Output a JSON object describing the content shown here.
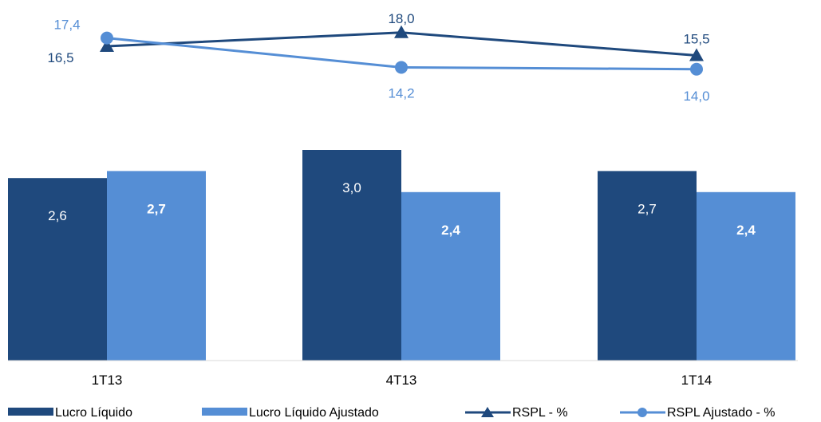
{
  "chart_data": {
    "type": "bar",
    "categories": [
      "1T13",
      "4T13",
      "1T14"
    ],
    "bar_series": [
      {
        "name": "Lucro Líquido",
        "values": [
          2.6,
          3.0,
          2.7
        ],
        "labels": [
          "2,6",
          "3,0",
          "2,7"
        ],
        "color": "#1F497D",
        "label_color": "#FFFFFF",
        "label_bold": false
      },
      {
        "name": "Lucro Líquido Ajustado",
        "values": [
          2.7,
          2.4,
          2.4
        ],
        "labels": [
          "2,7",
          "2,4",
          "2,4"
        ],
        "color": "#558ED5",
        "label_color": "#FFFFFF",
        "label_bold": true
      }
    ],
    "line_series": [
      {
        "name": "RSPL - %",
        "values": [
          16.5,
          18.0,
          15.5
        ],
        "labels": [
          "16,5",
          "18,0",
          "15,5"
        ],
        "color": "#1F497D",
        "marker": "triangle"
      },
      {
        "name": "RSPL Ajustado - %",
        "values": [
          17.4,
          14.2,
          14.0
        ],
        "labels": [
          "17,4",
          "14,2",
          "14,0"
        ],
        "color": "#558ED5",
        "marker": "circle"
      }
    ],
    "legend_position": "bottom",
    "grid": false
  }
}
